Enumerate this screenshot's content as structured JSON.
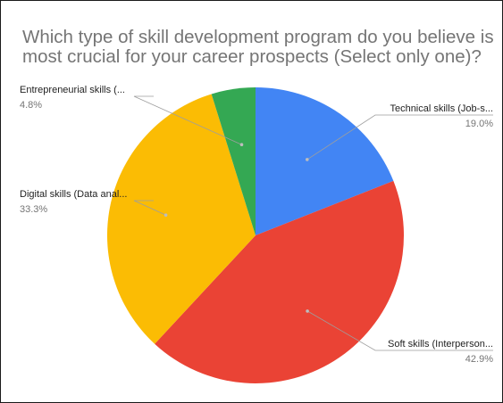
{
  "chart_data": {
    "type": "pie",
    "title_lines": [
      "Which type of skill development program do you believe is",
      "most crucial for your career prospects (Select only one)?"
    ],
    "slices": [
      {
        "label": "Technical skills (Job-s...",
        "value": 19.0,
        "percent_label": "19.0%",
        "color": "#4285F4"
      },
      {
        "label": "Soft skills (Interperson...",
        "value": 42.9,
        "percent_label": "42.9%",
        "color": "#EA4335"
      },
      {
        "label": "Digital skills (Data anal...",
        "value": 33.3,
        "percent_label": "33.3%",
        "color": "#FBBC04"
      },
      {
        "label": "Entrepreneurial skills (...",
        "value": 4.8,
        "percent_label": "4.8%",
        "color": "#34A853"
      }
    ],
    "start_angle": "12 o'clock",
    "direction": "clockwise",
    "legend": "labels with leader lines"
  }
}
